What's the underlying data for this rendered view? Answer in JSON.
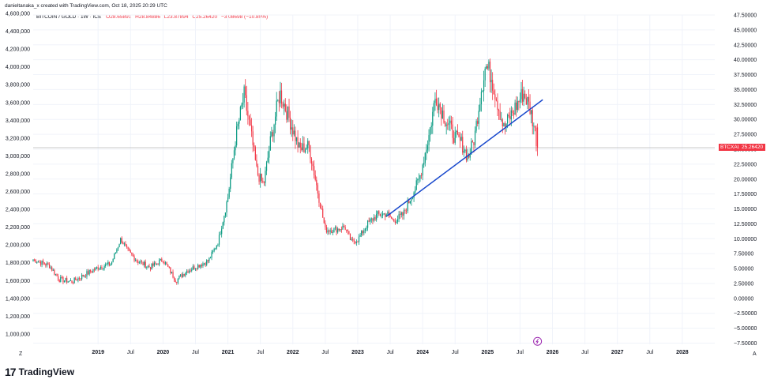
{
  "header": {
    "caption": "danieltanaka_x created with TradingView.com, Oct 18, 2025 20:29 UTC"
  },
  "legend": {
    "symbol": "BITCOIN / GOLD · 1W · ICE",
    "open": "O28.65891",
    "high": "H28.84886",
    "low": "L23.87894",
    "close": "C25.26420",
    "change": "−3.08698 (−10.89%)"
  },
  "price_tag": {
    "label": "BTCXAU",
    "value": "25.26420"
  },
  "footer": {
    "logo": "17",
    "brand": "TradingView"
  },
  "axis_corner": {
    "left": "Z",
    "right": "A"
  },
  "colors": {
    "up": "#089981",
    "down": "#f23645",
    "trendline": "#1848cc",
    "event": "#9c27b0"
  },
  "chart_data": {
    "type": "candlestick",
    "title": "BITCOIN / GOLD · 1W · ICE",
    "right_axis": {
      "range": [
        -7.5,
        47.5
      ],
      "ticks": [
        "47.50000",
        "45.00000",
        "42.50000",
        "40.00000",
        "37.50000",
        "35.00000",
        "32.50000",
        "30.00000",
        "27.50000",
        "25.00000",
        "22.50000",
        "20.00000",
        "17.50000",
        "15.00000",
        "12.50000",
        "10.00000",
        "7.50000",
        "5.00000",
        "2.50000",
        "0.00000",
        "−2.50000",
        "−5.00000",
        "−7.50000"
      ],
      "tick_values": [
        47.5,
        45,
        42.5,
        40,
        37.5,
        35,
        32.5,
        30,
        27.5,
        25,
        22.5,
        20,
        17.5,
        15,
        12.5,
        10,
        7.5,
        5,
        2.5,
        0,
        -2.5,
        -5,
        -7.5
      ]
    },
    "left_axis": {
      "ticks": [
        "4,600,000",
        "4,400,000",
        "4,200,000",
        "4,000,000",
        "3,800,000",
        "3,600,000",
        "3,400,000",
        "3,200,000",
        "3,000,000",
        "2,800,000",
        "2,600,000",
        "2,400,000",
        "2,200,000",
        "2,000,000",
        "1,800,000",
        "1,600,000",
        "1,400,000",
        "1,200,000",
        "1,000,000"
      ],
      "tick_values": [
        4600000,
        4400000,
        4200000,
        4000000,
        3800000,
        3600000,
        3400000,
        3200000,
        3000000,
        2800000,
        2600000,
        2400000,
        2200000,
        2000000,
        1800000,
        1600000,
        1400000,
        1200000,
        1000000
      ]
    },
    "x_axis": {
      "range": [
        2018.0,
        2028.5
      ],
      "labels": [
        "2019",
        "Jul",
        "2020",
        "Jul",
        "2021",
        "Jul",
        "2022",
        "Jul",
        "2023",
        "Jul",
        "2024",
        "Jul",
        "2025",
        "Jul",
        "2026",
        "Jul",
        "2027",
        "Jul",
        "2028"
      ],
      "label_positions": [
        2019.0,
        2019.5,
        2020.0,
        2020.5,
        2021.0,
        2021.5,
        2022.0,
        2022.5,
        2023.0,
        2023.5,
        2024.0,
        2024.5,
        2025.0,
        2025.5,
        2026.0,
        2026.5,
        2027.0,
        2027.5,
        2028.0
      ],
      "bold": [
        "2019",
        "2020",
        "2021",
        "2022",
        "2023",
        "2024",
        "2025",
        "2026",
        "2027",
        "2028"
      ]
    },
    "last_price": 25.2642,
    "trendline": {
      "start": [
        2023.45,
        13.8
      ],
      "end": [
        2025.85,
        33.3
      ]
    },
    "event_marker": {
      "x": 2025.77,
      "y": -7.2
    },
    "anchors": [
      [
        2018.0,
        6.5
      ],
      [
        2018.25,
        5.5
      ],
      [
        2018.4,
        3.2
      ],
      [
        2018.6,
        2.8
      ],
      [
        2018.8,
        4.0
      ],
      [
        2019.0,
        5.2
      ],
      [
        2019.2,
        5.8
      ],
      [
        2019.35,
        10.0
      ],
      [
        2019.45,
        8.0
      ],
      [
        2019.6,
        6.3
      ],
      [
        2019.8,
        5.2
      ],
      [
        2020.0,
        6.5
      ],
      [
        2020.2,
        3.0
      ],
      [
        2020.35,
        4.5
      ],
      [
        2020.5,
        5.3
      ],
      [
        2020.7,
        6.3
      ],
      [
        2020.85,
        9.5
      ],
      [
        2021.0,
        17.0
      ],
      [
        2021.12,
        27.0
      ],
      [
        2021.25,
        34.0
      ],
      [
        2021.35,
        28.0
      ],
      [
        2021.45,
        21.0
      ],
      [
        2021.55,
        19.0
      ],
      [
        2021.65,
        26.0
      ],
      [
        2021.8,
        34.5
      ],
      [
        2021.95,
        30.0
      ],
      [
        2022.1,
        25.0
      ],
      [
        2022.25,
        25.5
      ],
      [
        2022.4,
        17.0
      ],
      [
        2022.5,
        11.5
      ],
      [
        2022.65,
        11.5
      ],
      [
        2022.8,
        12.0
      ],
      [
        2022.9,
        9.5
      ],
      [
        2023.0,
        9.8
      ],
      [
        2023.15,
        12.5
      ],
      [
        2023.3,
        14.0
      ],
      [
        2023.45,
        14.2
      ],
      [
        2023.55,
        13.0
      ],
      [
        2023.7,
        14.0
      ],
      [
        2023.8,
        16.5
      ],
      [
        2023.95,
        20.0
      ],
      [
        2024.1,
        27.5
      ],
      [
        2024.2,
        34.0
      ],
      [
        2024.35,
        30.0
      ],
      [
        2024.5,
        27.0
      ],
      [
        2024.6,
        26.0
      ],
      [
        2024.7,
        23.5
      ],
      [
        2024.8,
        27.0
      ],
      [
        2024.9,
        35.0
      ],
      [
        2024.97,
        39.0
      ],
      [
        2025.05,
        37.5
      ],
      [
        2025.15,
        33.0
      ],
      [
        2025.25,
        28.5
      ],
      [
        2025.35,
        30.5
      ],
      [
        2025.45,
        32.5
      ],
      [
        2025.55,
        34.5
      ],
      [
        2025.65,
        32.0
      ],
      [
        2025.72,
        28.65
      ],
      [
        2025.77,
        25.26
      ]
    ]
  }
}
